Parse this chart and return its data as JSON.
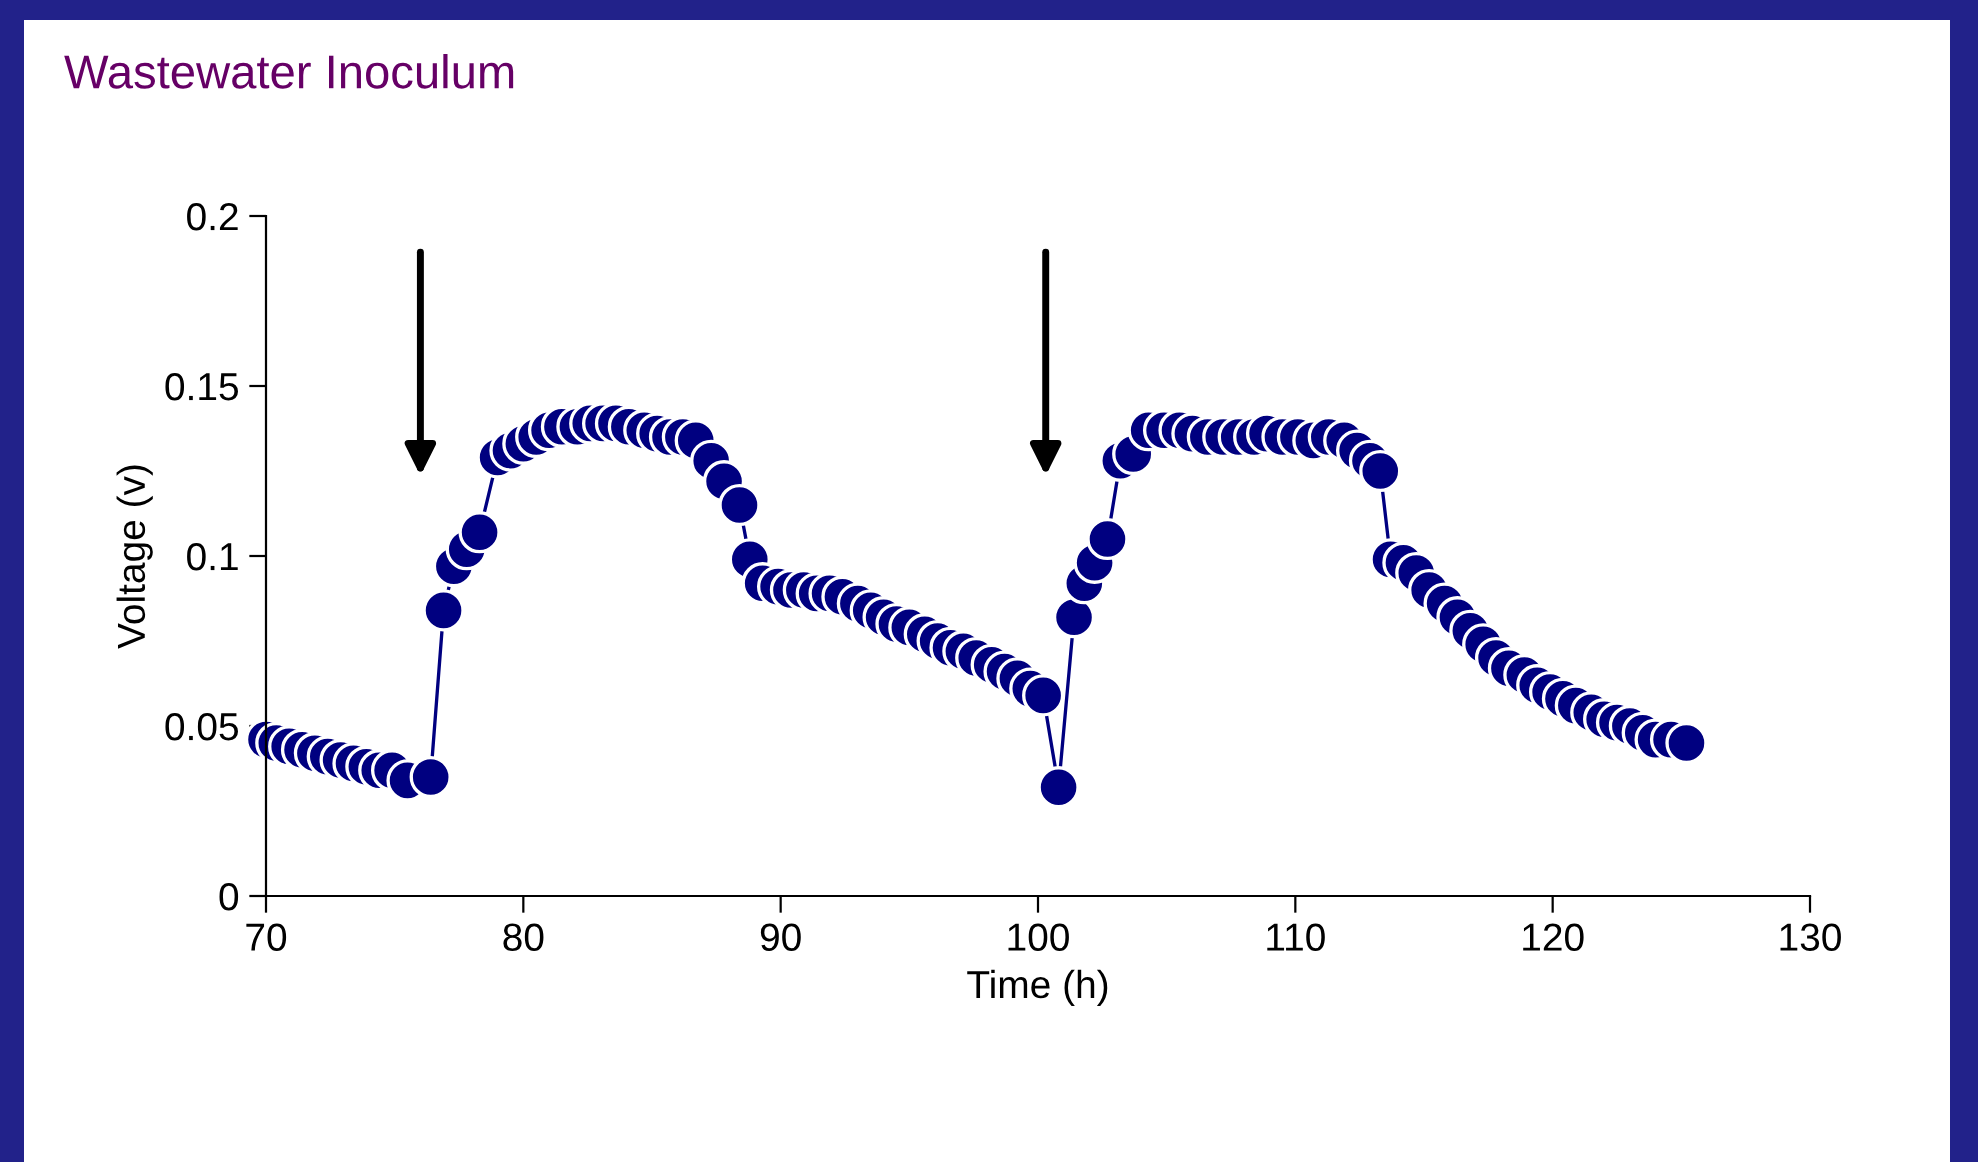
{
  "chart_data": {
    "type": "line",
    "title": "Wastewater Inoculum",
    "xlabel": "Time (h)",
    "ylabel": "Voltage (v)",
    "xlim": [
      70,
      130
    ],
    "xticks": [
      70,
      80,
      90,
      100,
      110,
      120,
      130
    ],
    "ylim": [
      0,
      0.2
    ],
    "yticks": [
      0,
      0.05,
      0.1,
      0.15,
      0.2
    ],
    "grid": false,
    "legend": false,
    "marker": "circle",
    "line_style": "solid",
    "series": [
      {
        "color": "#000080",
        "x": [
          70.0,
          70.4,
          70.9,
          71.4,
          71.9,
          72.4,
          72.9,
          73.4,
          73.9,
          74.4,
          74.9,
          75.5,
          76.4,
          76.9,
          77.3,
          77.8,
          78.3,
          79.0,
          79.5,
          80.0,
          80.5,
          81.0,
          81.5,
          82.1,
          82.6,
          83.1,
          83.6,
          84.1,
          84.7,
          85.2,
          85.7,
          86.2,
          86.7,
          87.3,
          87.8,
          88.4,
          88.8,
          89.3,
          89.9,
          90.4,
          90.9,
          91.4,
          91.9,
          92.4,
          93.0,
          93.5,
          94.0,
          94.5,
          95.0,
          95.6,
          96.1,
          96.6,
          97.1,
          97.6,
          98.2,
          98.7,
          99.2,
          99.7,
          100.2,
          100.8,
          101.4,
          101.8,
          102.2,
          102.7,
          103.2,
          103.7,
          104.3,
          104.9,
          105.5,
          106.0,
          106.6,
          107.2,
          107.8,
          108.4,
          108.9,
          109.5,
          110.1,
          110.7,
          111.3,
          111.9,
          112.4,
          112.9,
          113.3,
          113.7,
          114.2,
          114.7,
          115.2,
          115.8,
          116.3,
          116.8,
          117.3,
          117.8,
          118.3,
          118.9,
          119.4,
          119.9,
          120.4,
          120.9,
          121.5,
          122.0,
          122.5,
          123.0,
          123.5,
          124.0,
          124.6,
          125.2
        ],
        "values": [
          0.046,
          0.045,
          0.044,
          0.043,
          0.042,
          0.041,
          0.04,
          0.039,
          0.038,
          0.037,
          0.037,
          0.034,
          0.035,
          0.084,
          0.097,
          0.102,
          0.107,
          0.129,
          0.131,
          0.133,
          0.135,
          0.137,
          0.138,
          0.138,
          0.139,
          0.139,
          0.139,
          0.138,
          0.137,
          0.136,
          0.135,
          0.135,
          0.134,
          0.128,
          0.122,
          0.115,
          0.099,
          0.092,
          0.091,
          0.09,
          0.09,
          0.089,
          0.089,
          0.088,
          0.086,
          0.084,
          0.082,
          0.08,
          0.079,
          0.077,
          0.075,
          0.073,
          0.072,
          0.07,
          0.068,
          0.066,
          0.064,
          0.061,
          0.059,
          0.032,
          0.082,
          0.092,
          0.098,
          0.105,
          0.128,
          0.13,
          0.137,
          0.137,
          0.137,
          0.136,
          0.135,
          0.135,
          0.135,
          0.135,
          0.136,
          0.135,
          0.135,
          0.134,
          0.135,
          0.134,
          0.131,
          0.128,
          0.125,
          0.099,
          0.098,
          0.095,
          0.09,
          0.086,
          0.082,
          0.078,
          0.074,
          0.07,
          0.067,
          0.065,
          0.062,
          0.06,
          0.058,
          0.056,
          0.054,
          0.052,
          0.051,
          0.05,
          0.048,
          0.046,
          0.046,
          0.045
        ]
      }
    ]
  }
}
